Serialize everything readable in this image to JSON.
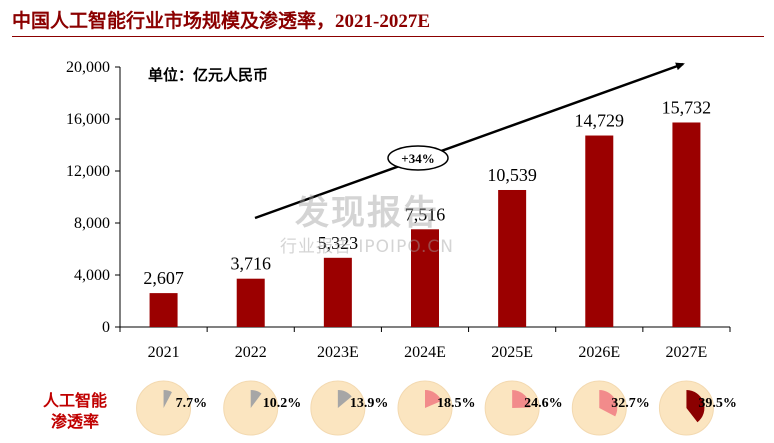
{
  "header": {
    "title": "中国人工智能行业市场规模及渗透率，",
    "title_years": "2021-2027E"
  },
  "unit_label": "单位：亿元人民币",
  "growth_label": "+34%",
  "watermark": {
    "main": "发现报告",
    "sub": "行业报告 IPOIPO.CN"
  },
  "penetration_label": {
    "line1": "人工智能",
    "line2": "渗透率"
  },
  "colors": {
    "bar": "#9b0000",
    "title": "#8b0000",
    "pie_bg": "#fbe5c0",
    "pie_gray": "#a6a6a6",
    "pie_pink": "#f28b8b",
    "pie_dark": "#8b0000"
  },
  "chart_data": [
    {
      "type": "bar",
      "categories": [
        "2021",
        "2022",
        "2023E",
        "2024E",
        "2025E",
        "2026E",
        "2027E"
      ],
      "values": [
        2607,
        3716,
        5323,
        7516,
        10539,
        14729,
        15732
      ],
      "value_labels": [
        "2,607",
        "3,716",
        "5,323",
        "7,516",
        "10,539",
        "14,729",
        "15,732"
      ],
      "yticks": [
        "0",
        "4,000",
        "8,000",
        "12,000",
        "16,000",
        "20,000"
      ],
      "ylim": [
        0,
        20000
      ]
    },
    {
      "type": "pie",
      "categories": [
        "2021",
        "2022",
        "2023E",
        "2024E",
        "2025E",
        "2026E",
        "2027E"
      ],
      "values": [
        7.7,
        10.2,
        13.9,
        18.5,
        24.6,
        32.7,
        39.5
      ],
      "value_labels": [
        "7.7%",
        "10.2%",
        "13.9%",
        "18.5%",
        "24.6%",
        "32.7%",
        "39.5%"
      ],
      "slice_colors": [
        "gray",
        "gray",
        "gray",
        "pink",
        "pink",
        "pink",
        "dark"
      ]
    }
  ]
}
